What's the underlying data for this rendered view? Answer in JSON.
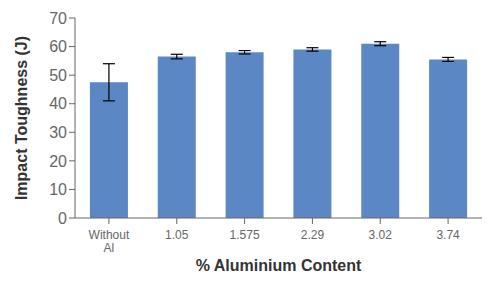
{
  "chart_data": {
    "type": "bar",
    "categories": [
      "Without\nAl",
      "1.05",
      "1.575",
      "2.29",
      "3.02",
      "3.74"
    ],
    "values": [
      47.5,
      56.5,
      58.0,
      59.0,
      61.0,
      55.5
    ],
    "errors": [
      6.5,
      0.8,
      0.6,
      0.6,
      0.7,
      0.7
    ],
    "color": "#5b87c5",
    "xlabel": "% Aluminium Content",
    "ylabel": "Impact Toughness (J)",
    "ylim": [
      0,
      70
    ],
    "yticks": [
      0,
      10,
      20,
      30,
      40,
      50,
      60,
      70
    ],
    "grid": false
  }
}
